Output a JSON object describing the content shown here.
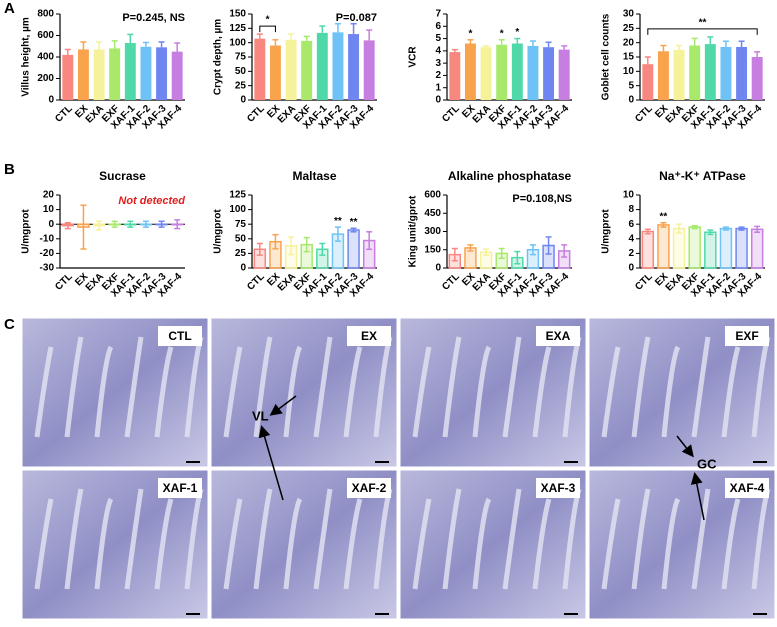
{
  "panels": [
    "A",
    "B",
    "C"
  ],
  "chart_data": [
    {
      "type": "bar",
      "y_label": "Villus height, µm",
      "categories": [
        "CTL",
        "EX",
        "EXA",
        "EXF",
        "XAF-1",
        "XAF-2",
        "XAF-3",
        "XAF-4"
      ],
      "colors": [
        "#f8877f",
        "#f9a34d",
        "#f6f29a",
        "#a8e86a",
        "#4fd9a8",
        "#6ec2f5",
        "#6f86f0",
        "#c67ee0"
      ],
      "values": [
        420,
        470,
        470,
        480,
        530,
        495,
        490,
        450
      ],
      "errors": [
        50,
        70,
        70,
        70,
        80,
        40,
        50,
        80
      ],
      "ylim": [
        0,
        800
      ],
      "yticks": [
        0,
        200,
        400,
        600,
        800
      ],
      "annotation": "P=0.245, NS"
    },
    {
      "type": "bar",
      "y_label": "Crypt depth, µm",
      "categories": [
        "CTL",
        "EX",
        "EXA",
        "EXF",
        "XAF-1",
        "XAF-2",
        "XAF-3",
        "XAF-4"
      ],
      "colors": [
        "#f8877f",
        "#f9a34d",
        "#f6f29a",
        "#a8e86a",
        "#4fd9a8",
        "#6ec2f5",
        "#6f86f0",
        "#c67ee0"
      ],
      "values": [
        107,
        95,
        105,
        103,
        117,
        118,
        115,
        104
      ],
      "errors": [
        8,
        10,
        10,
        8,
        12,
        15,
        18,
        18
      ],
      "ylim": [
        0,
        150
      ],
      "yticks": [
        0,
        25,
        50,
        75,
        100,
        125,
        150
      ],
      "annotation": "P=0.087",
      "brackets": [
        {
          "from": "CTL",
          "to": "EX",
          "text": "*"
        }
      ]
    },
    {
      "type": "bar",
      "y_label": "VCR",
      "categories": [
        "CTL",
        "EX",
        "EXA",
        "EXF",
        "XAF-1",
        "XAF-2",
        "XAF-3",
        "XAF-4"
      ],
      "colors": [
        "#f8877f",
        "#f9a34d",
        "#f6f29a",
        "#a8e86a",
        "#4fd9a8",
        "#6ec2f5",
        "#6f86f0",
        "#c67ee0"
      ],
      "values": [
        3.9,
        4.6,
        4.3,
        4.5,
        4.6,
        4.4,
        4.3,
        4.1
      ],
      "errors": [
        0.2,
        0.3,
        0.1,
        0.4,
        0.4,
        0.4,
        0.4,
        0.3
      ],
      "ylim": [
        0,
        7
      ],
      "yticks": [
        0,
        1,
        2,
        3,
        4,
        5,
        6,
        7
      ],
      "stars": [
        {
          "category": "EX",
          "text": "*"
        },
        {
          "category": "EXF",
          "text": "*"
        },
        {
          "category": "XAF-1",
          "text": "*"
        }
      ]
    },
    {
      "type": "bar",
      "y_label": "Goblet cell counts",
      "categories": [
        "CTL",
        "EX",
        "EXA",
        "EXF",
        "XAF-1",
        "XAF-2",
        "XAF-3",
        "XAF-4"
      ],
      "colors": [
        "#f8877f",
        "#f9a34d",
        "#f6f29a",
        "#a8e86a",
        "#4fd9a8",
        "#6ec2f5",
        "#6f86f0",
        "#c67ee0"
      ],
      "values": [
        12.5,
        17,
        17.5,
        19,
        19.5,
        18.5,
        18.5,
        15
      ],
      "errors": [
        2.5,
        2,
        1.5,
        2.5,
        2.5,
        2,
        2,
        1.8
      ],
      "ylim": [
        0,
        30
      ],
      "yticks": [
        0,
        5,
        10,
        15,
        20,
        25,
        30
      ],
      "brackets": [
        {
          "from": "CTL",
          "to": "XAF-4",
          "text": "**"
        }
      ]
    },
    {
      "type": "bar",
      "bar_style": "open",
      "title": "Sucrase",
      "y_label": "U/mgprot",
      "categories": [
        "CTL",
        "EX",
        "EXA",
        "EXF",
        "XAF-1",
        "XAF-2",
        "XAF-3",
        "XAF-4"
      ],
      "colors": [
        "#f8877f",
        "#f9a34d",
        "#f6f29a",
        "#a8e86a",
        "#4fd9a8",
        "#6ec2f5",
        "#6f86f0",
        "#c67ee0"
      ],
      "values": [
        -1,
        -2,
        -1,
        0,
        0,
        0,
        0,
        0
      ],
      "errors": [
        2,
        15,
        3,
        2,
        2,
        2,
        2,
        3
      ],
      "ylim": [
        -30,
        20
      ],
      "yticks": [
        -30,
        -20,
        -10,
        0,
        10,
        20
      ],
      "note": "Not detected"
    },
    {
      "type": "bar",
      "bar_style": "open",
      "title": "Maltase",
      "y_label": "U/mgprot",
      "categories": [
        "CTL",
        "EX",
        "EXA",
        "EXF",
        "XAF-1",
        "XAF-2",
        "XAF-3",
        "XAF-4"
      ],
      "colors": [
        "#f8877f",
        "#f9a34d",
        "#f6f29a",
        "#a8e86a",
        "#4fd9a8",
        "#6ec2f5",
        "#6f86f0",
        "#c67ee0"
      ],
      "values": [
        32,
        45,
        38,
        40,
        32,
        58,
        65,
        47
      ],
      "errors": [
        10,
        12,
        15,
        12,
        10,
        12,
        3,
        15
      ],
      "ylim": [
        0,
        125
      ],
      "yticks": [
        0,
        25,
        50,
        75,
        100,
        125
      ],
      "stars": [
        {
          "category": "XAF-2",
          "text": "**"
        },
        {
          "category": "XAF-3",
          "text": "**"
        }
      ]
    },
    {
      "type": "bar",
      "bar_style": "open",
      "title": "Alkaline phosphatase",
      "y_label": "King unit/gprot",
      "categories": [
        "CTL",
        "EX",
        "EXA",
        "EXF",
        "XAF-1",
        "XAF-2",
        "XAF-3",
        "XAF-4"
      ],
      "colors": [
        "#f8877f",
        "#f9a34d",
        "#f6f29a",
        "#a8e86a",
        "#4fd9a8",
        "#6ec2f5",
        "#6f86f0",
        "#c67ee0"
      ],
      "values": [
        110,
        165,
        130,
        120,
        85,
        150,
        185,
        140
      ],
      "errors": [
        50,
        25,
        25,
        40,
        50,
        40,
        70,
        50
      ],
      "ylim": [
        0,
        600
      ],
      "yticks": [
        0,
        150,
        300,
        450,
        600
      ],
      "annotation": "P=0.108,NS"
    },
    {
      "type": "bar",
      "bar_style": "open",
      "title": "Na⁺-K⁺ ATPase",
      "y_label": "U/mgprot",
      "categories": [
        "CTL",
        "EX",
        "EXA",
        "EXF",
        "XAF-1",
        "XAF-2",
        "XAF-3",
        "XAF-4"
      ],
      "colors": [
        "#f8877f",
        "#f9a34d",
        "#f6f29a",
        "#a8e86a",
        "#4fd9a8",
        "#6ec2f5",
        "#6f86f0",
        "#c67ee0"
      ],
      "values": [
        5.0,
        5.9,
        5.4,
        5.6,
        4.9,
        5.4,
        5.4,
        5.3
      ],
      "errors": [
        0.3,
        0.3,
        0.6,
        0.2,
        0.3,
        0.2,
        0.2,
        0.4
      ],
      "ylim": [
        0,
        10
      ],
      "yticks": [
        0,
        2,
        4,
        6,
        8,
        10
      ],
      "stars": [
        {
          "category": "EX",
          "text": "**"
        }
      ]
    }
  ],
  "micrographs": [
    "CTL",
    "EX",
    "EXA",
    "EXF",
    "XAF-1",
    "XAF-2",
    "XAF-3",
    "XAF-4"
  ],
  "arrow_labels": [
    "VL",
    "GC"
  ]
}
